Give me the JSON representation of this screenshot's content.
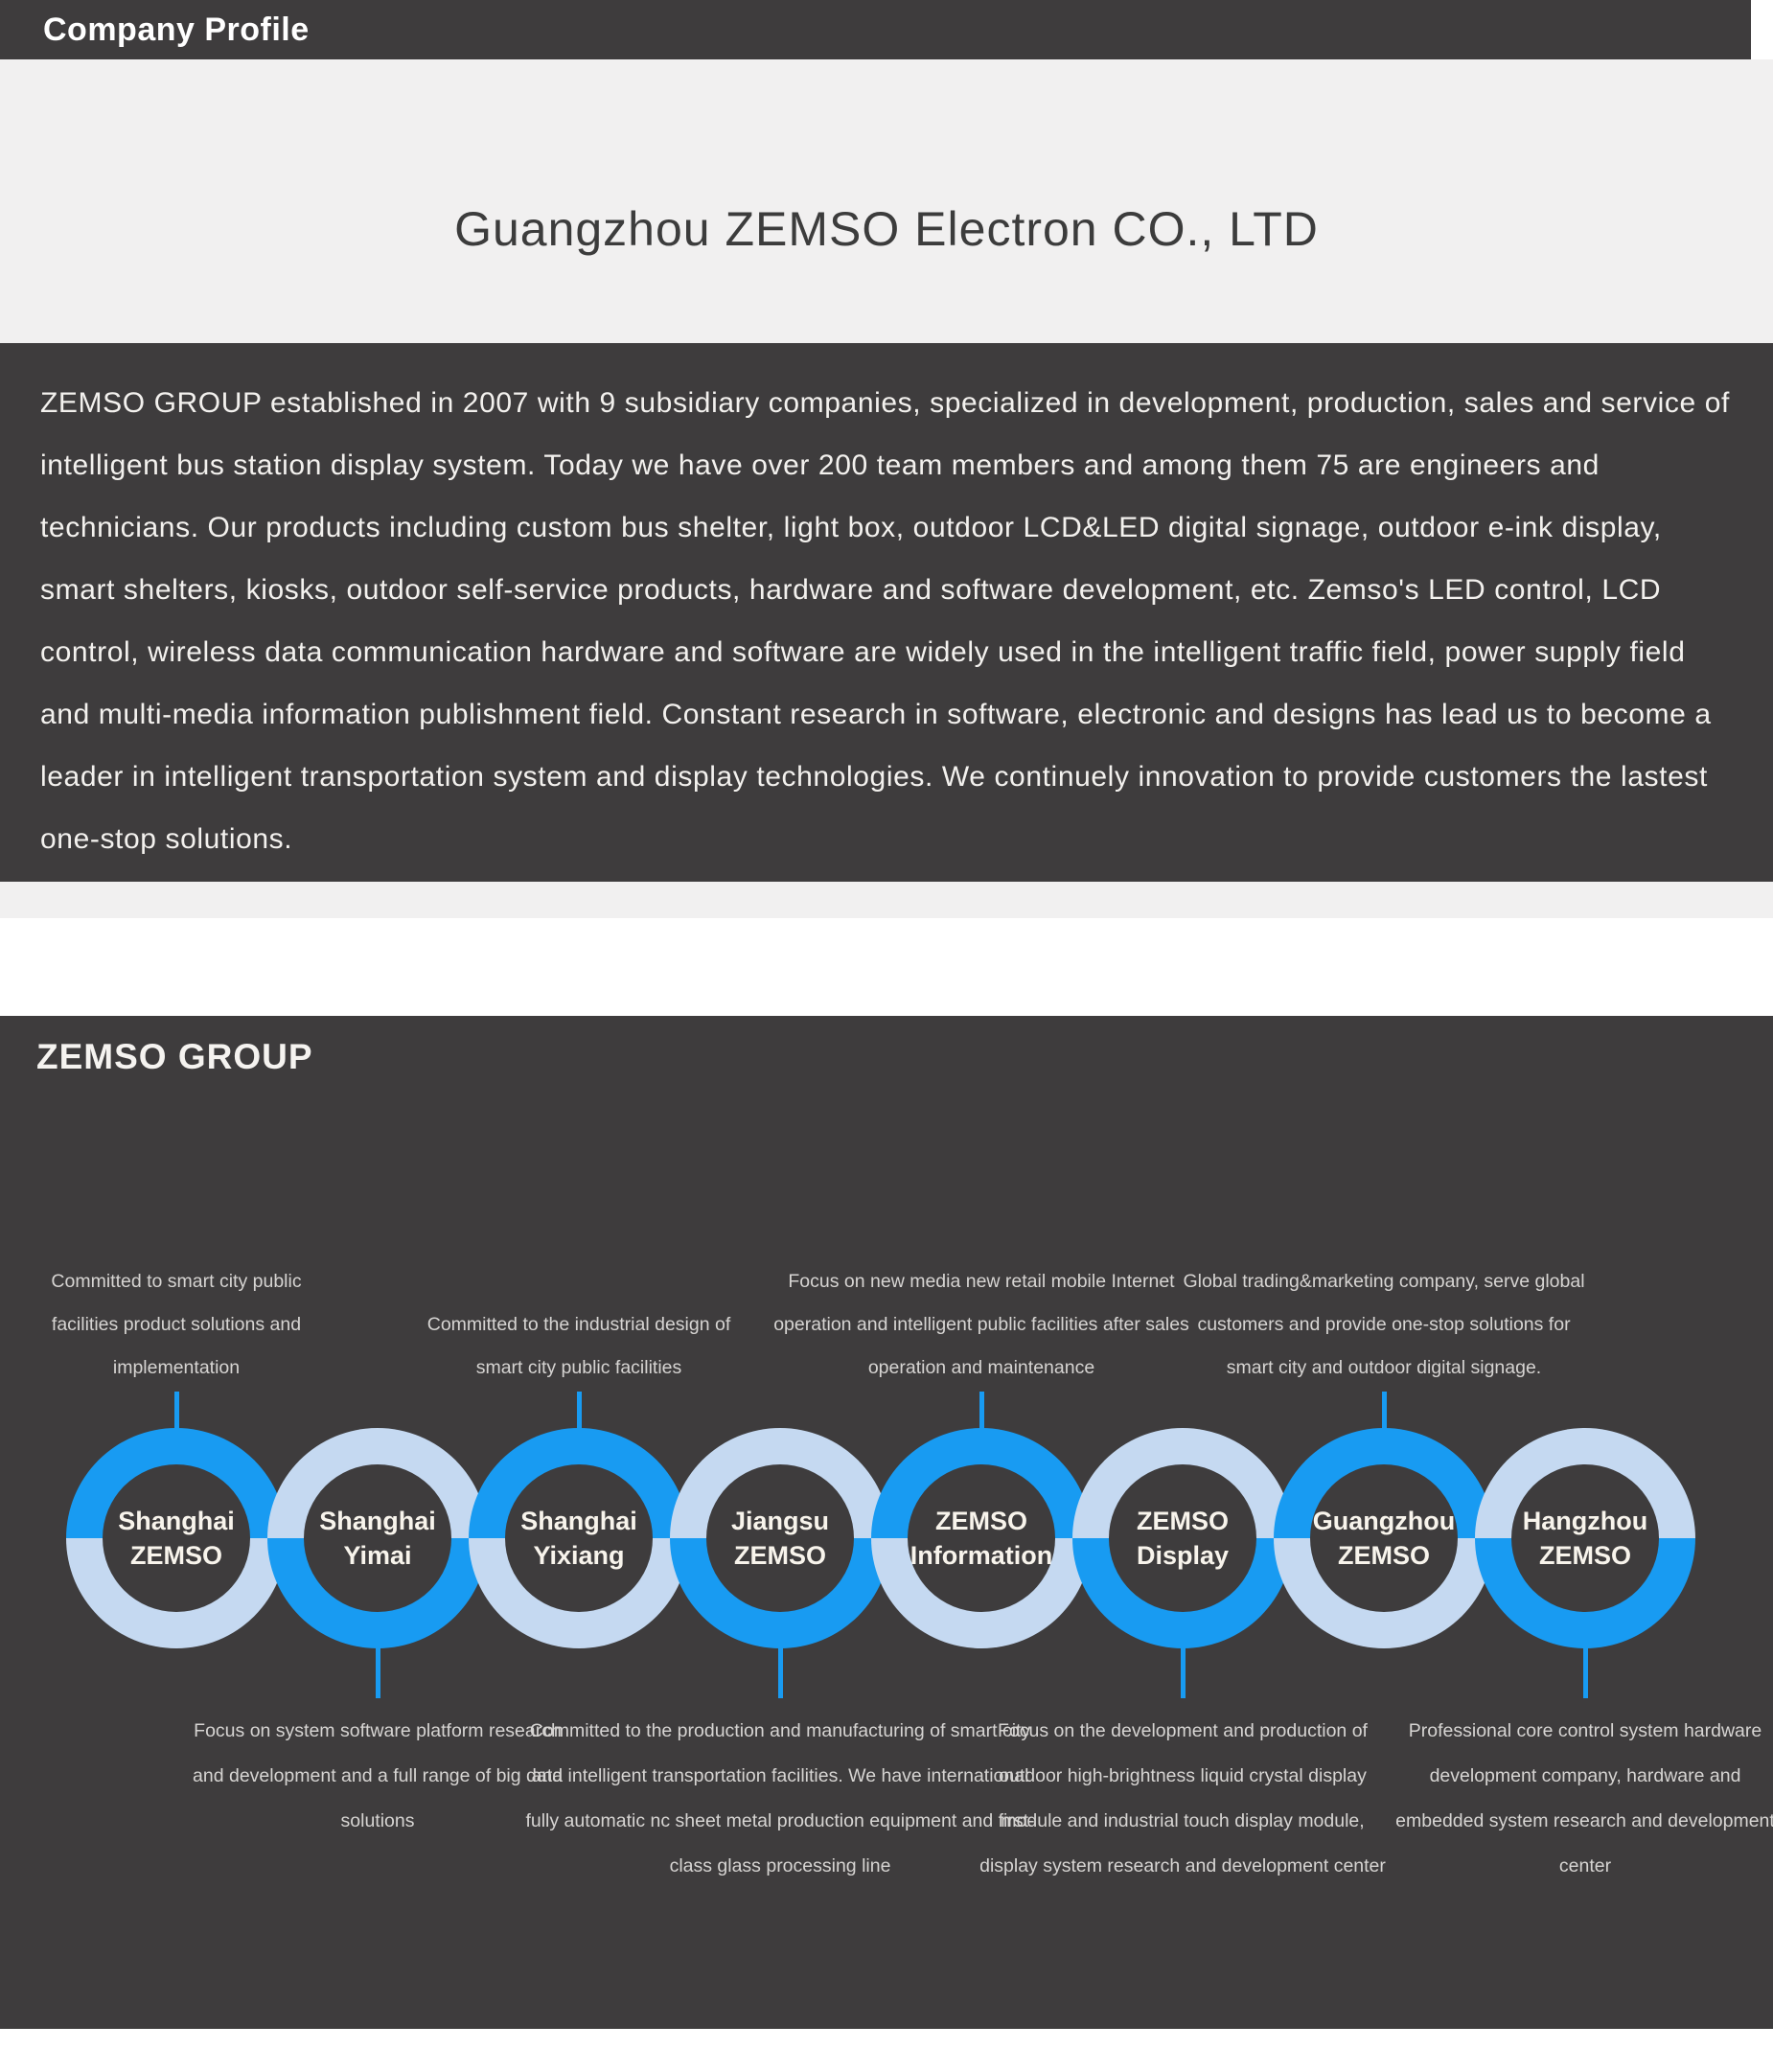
{
  "header": {
    "title": "Company Profile"
  },
  "hero": {
    "company_name": "Guangzhou ZEMSO Electron CO., LTD"
  },
  "about": {
    "paragraph": "ZEMSO GROUP established in 2007 with 9 subsidiary companies, specialized in development, production, sales and service  of intelligent bus station display system. Today we have over 200 team members and among them 75 are engineers and technicians. Our products including custom bus shelter, light box, outdoor LCD&LED digital signage, outdoor e-ink display, smart shelters, kiosks, outdoor self-service products, hardware and software development, etc. Zemso's LED control, LCD control, wireless data communication hardware and software are widely used in the intelligent traffic field, power supply field and multi-media information publishment field. Constant research in software, electronic and designs has lead us to become a leader in intelligent transportation system and display technologies. We continuely innovation to provide customers the lastest one-stop solutions."
  },
  "group": {
    "heading": "ZEMSO GROUP",
    "companies": [
      {
        "line1": "Shanghai",
        "line2": "ZEMSO",
        "accent_half": "top",
        "description_position": "top",
        "description": "Committed to smart city public facilities product solutions and implementation"
      },
      {
        "line1": "Shanghai",
        "line2": "Yimai",
        "accent_half": "bottom",
        "description_position": "bottom",
        "description": "Focus on system software platform research and development and a full range of big data solutions"
      },
      {
        "line1": "Shanghai",
        "line2": "Yixiang",
        "accent_half": "top",
        "description_position": "top",
        "description": "Committed to the industrial design of smart city public facilities"
      },
      {
        "line1": "Jiangsu",
        "line2": "ZEMSO",
        "accent_half": "bottom",
        "description_position": "bottom",
        "description": "Committed to the production and manufacturing of smart city and intelligent transportation facilities. We have international fully automatic nc sheet metal production equipment and first-class glass processing line"
      },
      {
        "line1": "ZEMSO",
        "line2": "Information",
        "accent_half": "top",
        "description_position": "top",
        "description": "Focus on new media new retail mobile Internet operation and intelligent public facilities after sales operation and maintenance"
      },
      {
        "line1": "ZEMSO",
        "line2": "Display",
        "accent_half": "bottom",
        "description_position": "bottom",
        "description": "Focus on the development and production of outdoor high-brightness liquid crystal display module and industrial touch display module, display system research and development center"
      },
      {
        "line1": "Guangzhou",
        "line2": "ZEMSO",
        "accent_half": "top",
        "description_position": "top",
        "description": "Global trading&marketing company, serve global customers and provide one-stop solutions for smart city and outdoor digital signage."
      },
      {
        "line1": "Hangzhou",
        "line2": "ZEMSO",
        "accent_half": "bottom",
        "description_position": "bottom",
        "description": "Professional core control system hardware development company, hardware and embedded system research and development center"
      }
    ]
  },
  "colors": {
    "bright_blue": "#189bf2",
    "light_blue": "#c5d9f1",
    "dark_background": "#3e3c3d",
    "light_section": "#f1f0f0",
    "paragraph_text": "#f3f1ee",
    "description_text": "#d6d4d2",
    "circle_label_text": "#f8f4ec",
    "hero_title_text": "#3c3c3c"
  }
}
